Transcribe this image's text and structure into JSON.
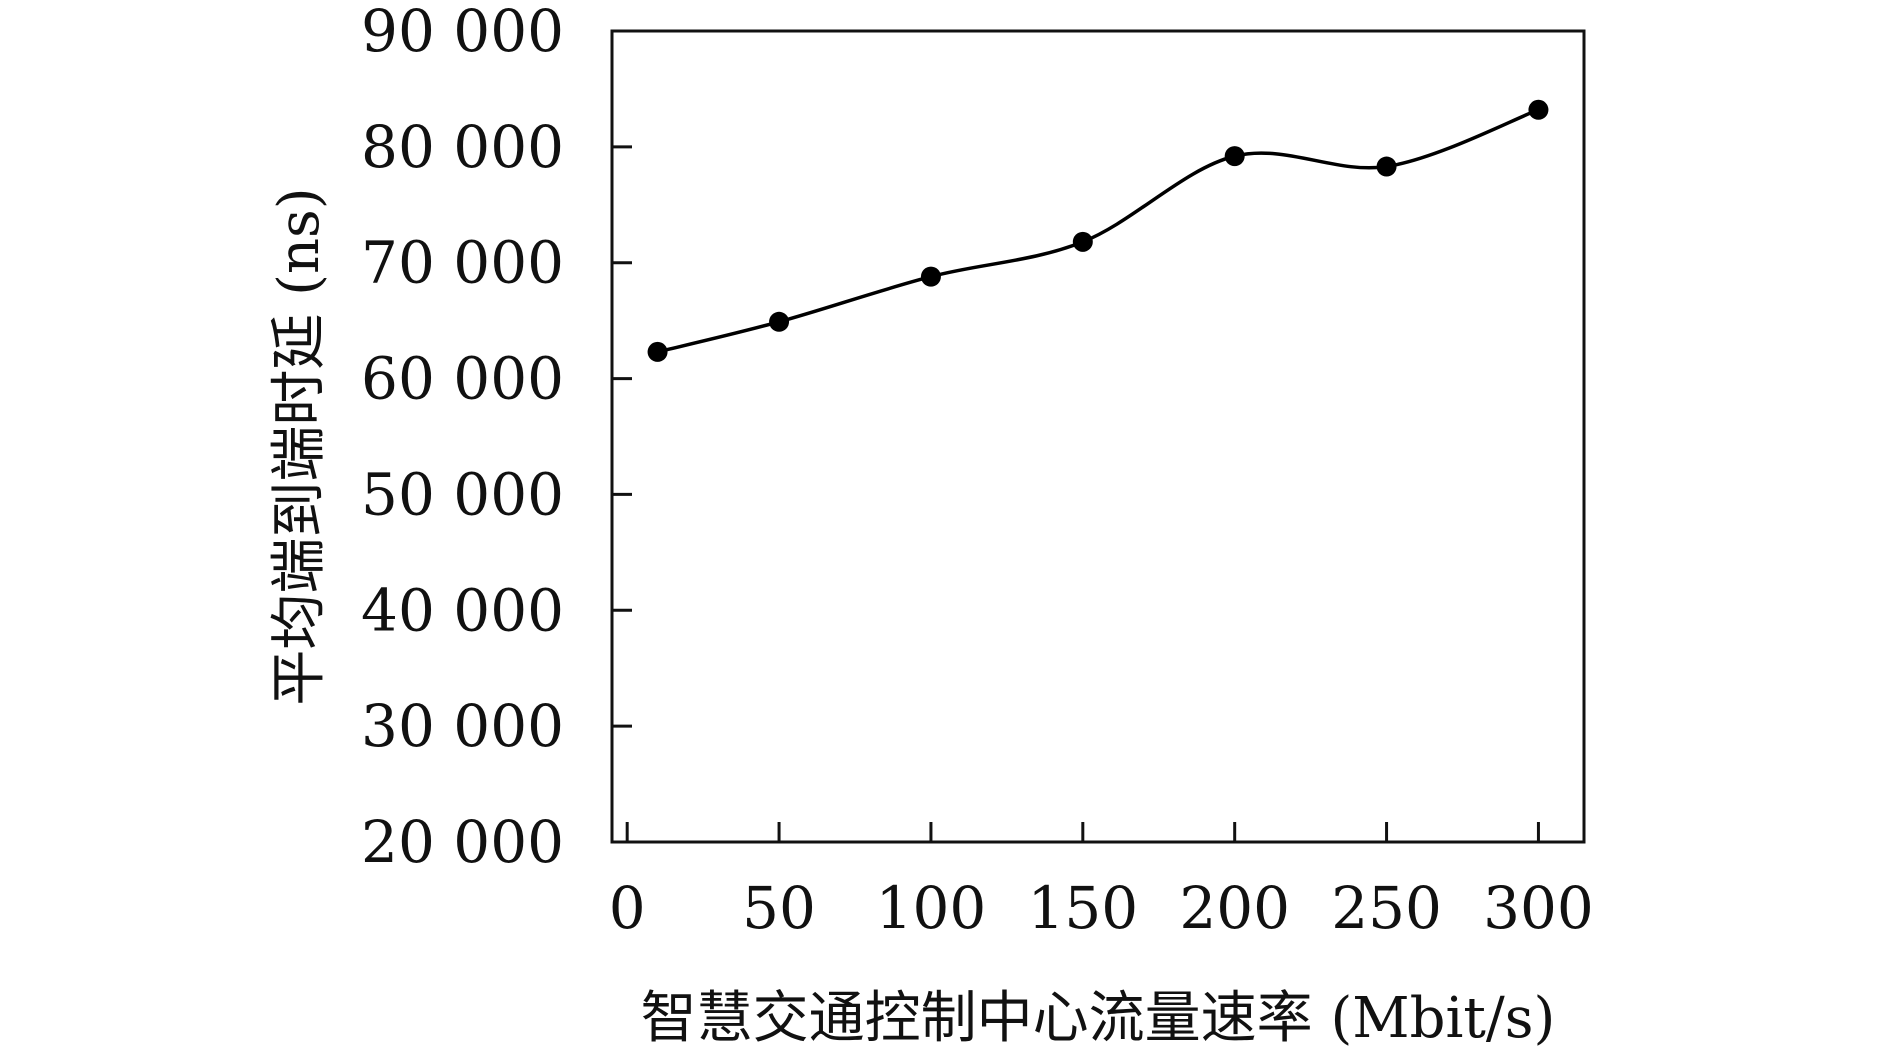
{
  "chart_data": {
    "type": "line",
    "title": "",
    "xlabel": "智慧交通控制中心流量速率 (Mbit/s)",
    "ylabel": "平均端到端时延 (ns)",
    "xlim": [
      -5,
      315
    ],
    "ylim": [
      20000,
      90000
    ],
    "xticks": [
      0,
      50,
      100,
      150,
      200,
      250,
      300
    ],
    "xtick_labels": [
      "0",
      "50",
      "100",
      "150",
      "200",
      "250",
      "300"
    ],
    "yticks": [
      20000,
      30000,
      40000,
      50000,
      60000,
      70000,
      80000,
      90000
    ],
    "ytick_labels": [
      "20 000",
      "30 000",
      "40 000",
      "50 000",
      "60 000",
      "70 000",
      "80 000",
      "90 000"
    ],
    "grid": false,
    "legend": "none",
    "series": [
      {
        "x": [
          10,
          50,
          100,
          150,
          200,
          250,
          300
        ],
        "y": [
          62300,
          64900,
          68800,
          71800,
          79200,
          78300,
          83200
        ],
        "color": "#000000",
        "marker": "circle",
        "smooth": true
      }
    ]
  }
}
